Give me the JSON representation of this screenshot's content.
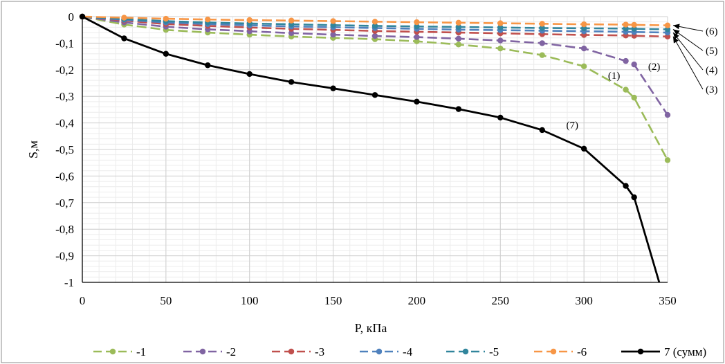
{
  "chart_data": {
    "type": "line",
    "title": "",
    "xlabel": "P, кПа",
    "ylabel": "S,м",
    "xlim": [
      0,
      350
    ],
    "ylim": [
      -1,
      0
    ],
    "x_ticks": [
      "0",
      "50",
      "100",
      "150",
      "200",
      "250",
      "300",
      "350"
    ],
    "y_ticks": [
      "0",
      "-0,1",
      "-0,2",
      "-0,3",
      "-0,4",
      "-0,5",
      "-0,6",
      "-0,7",
      "-0,8",
      "-0,9",
      "-1"
    ],
    "grid": true,
    "legend_position": "bottom",
    "series": [
      {
        "name": "-1",
        "color": "#9bbb59",
        "dash": true,
        "x": [
          0,
          25,
          50,
          75,
          100,
          125,
          150,
          175,
          200,
          225,
          250,
          275,
          300,
          325,
          330,
          350
        ],
        "y": [
          0,
          -0.03,
          -0.05,
          -0.06,
          -0.068,
          -0.075,
          -0.08,
          -0.085,
          -0.093,
          -0.105,
          -0.12,
          -0.145,
          -0.187,
          -0.275,
          -0.305,
          -0.54
        ]
      },
      {
        "name": "-2",
        "color": "#8064a2",
        "dash": true,
        "x": [
          0,
          25,
          50,
          75,
          100,
          125,
          150,
          175,
          200,
          225,
          250,
          275,
          300,
          325,
          330,
          350
        ],
        "y": [
          0,
          -0.022,
          -0.038,
          -0.048,
          -0.055,
          -0.062,
          -0.068,
          -0.073,
          -0.077,
          -0.083,
          -0.09,
          -0.1,
          -0.12,
          -0.167,
          -0.18,
          -0.37
        ]
      },
      {
        "name": "-3",
        "color": "#c0504d",
        "dash": true,
        "x": [
          0,
          25,
          50,
          75,
          100,
          125,
          150,
          175,
          200,
          225,
          250,
          275,
          300,
          325,
          330,
          350
        ],
        "y": [
          0,
          -0.015,
          -0.028,
          -0.035,
          -0.041,
          -0.046,
          -0.05,
          -0.054,
          -0.057,
          -0.06,
          -0.063,
          -0.066,
          -0.069,
          -0.071,
          -0.072,
          -0.075
        ]
      },
      {
        "name": "-4",
        "color": "#4f81bd",
        "dash": true,
        "x": [
          0,
          25,
          50,
          75,
          100,
          125,
          150,
          175,
          200,
          225,
          250,
          275,
          300,
          325,
          330,
          350
        ],
        "y": [
          0,
          -0.012,
          -0.022,
          -0.028,
          -0.033,
          -0.037,
          -0.04,
          -0.043,
          -0.046,
          -0.049,
          -0.051,
          -0.053,
          -0.055,
          -0.057,
          -0.058,
          -0.06
        ]
      },
      {
        "name": "-5",
        "color": "#31859c",
        "dash": true,
        "x": [
          0,
          25,
          50,
          75,
          100,
          125,
          150,
          175,
          200,
          225,
          250,
          275,
          300,
          325,
          330,
          350
        ],
        "y": [
          0,
          -0.009,
          -0.017,
          -0.022,
          -0.026,
          -0.029,
          -0.032,
          -0.035,
          -0.037,
          -0.039,
          -0.041,
          -0.043,
          -0.044,
          -0.045,
          -0.046,
          -0.048
        ]
      },
      {
        "name": "-6",
        "color": "#f79646",
        "dash": true,
        "x": [
          0,
          25,
          50,
          75,
          100,
          125,
          150,
          175,
          200,
          225,
          250,
          275,
          300,
          325,
          330,
          350
        ],
        "y": [
          0,
          -0.004,
          -0.008,
          -0.011,
          -0.013,
          -0.015,
          -0.017,
          -0.019,
          -0.021,
          -0.023,
          -0.025,
          -0.027,
          -0.029,
          -0.03,
          -0.031,
          -0.033
        ]
      },
      {
        "name": "7 (сумм)",
        "color": "#000000",
        "dash": false,
        "x": [
          0,
          25,
          50,
          75,
          100,
          125,
          150,
          175,
          200,
          225,
          250,
          275,
          300,
          325,
          330,
          345
        ],
        "y": [
          0,
          -0.082,
          -0.14,
          -0.183,
          -0.216,
          -0.246,
          -0.27,
          -0.295,
          -0.32,
          -0.348,
          -0.38,
          -0.427,
          -0.497,
          -0.637,
          -0.68,
          -1.0
        ]
      }
    ],
    "annotations": [
      {
        "text": "(1)",
        "x": 318,
        "y": -0.235
      },
      {
        "text": "(2)",
        "x": 342,
        "y": -0.2
      },
      {
        "text": "(7)",
        "x": 293,
        "y": -0.42
      },
      {
        "text": "(6)",
        "x": null,
        "y": null
      },
      {
        "text": "(5)",
        "x": null,
        "y": null
      },
      {
        "text": "(4)",
        "x": null,
        "y": null
      },
      {
        "text": "(3)",
        "x": null,
        "y": null
      }
    ]
  }
}
